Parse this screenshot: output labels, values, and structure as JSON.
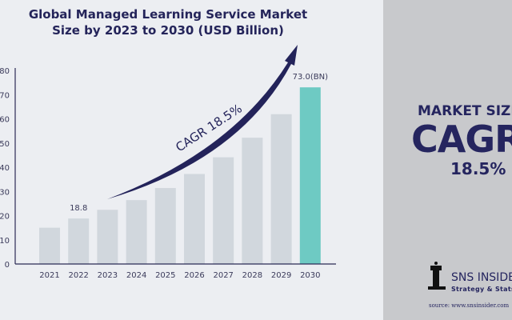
{
  "chart_data": {
    "type": "bar",
    "title": "Global Managed Learning Service Market Size by 2023 to 2030 (USD Billion)",
    "title_lines": [
      "Global Managed Learning Service Market",
      "Size by 2023 to 2030 (USD Billion)"
    ],
    "categories": [
      "2021",
      "2022",
      "2023",
      "2024",
      "2025",
      "2026",
      "2027",
      "2028",
      "2029",
      "2030"
    ],
    "values": [
      15.0,
      18.8,
      22.4,
      26.4,
      31.4,
      37.2,
      44.1,
      52.2,
      61.9,
      73.0
    ],
    "ylim": [
      0,
      80
    ],
    "yticks": [
      0,
      10,
      20,
      30,
      40,
      50,
      60,
      70,
      80
    ],
    "data_labels": {
      "1": "18.8",
      "9": "73.0(BN)"
    },
    "annotation": "CAGR 18.5%",
    "grid": false,
    "colors": {
      "bar": "#d1d7dd",
      "highlight": "#6ecac3",
      "axis": "#2b2b55",
      "arrow": "#23235a"
    }
  },
  "panel": {
    "market_size": "MARKET SIZE",
    "cagr": "CAGR",
    "cagr_value": "18.5%",
    "logo": "SNS INSIDER",
    "tagline": "Strategy & Stats",
    "source": "source: www.snsinsider.com"
  }
}
